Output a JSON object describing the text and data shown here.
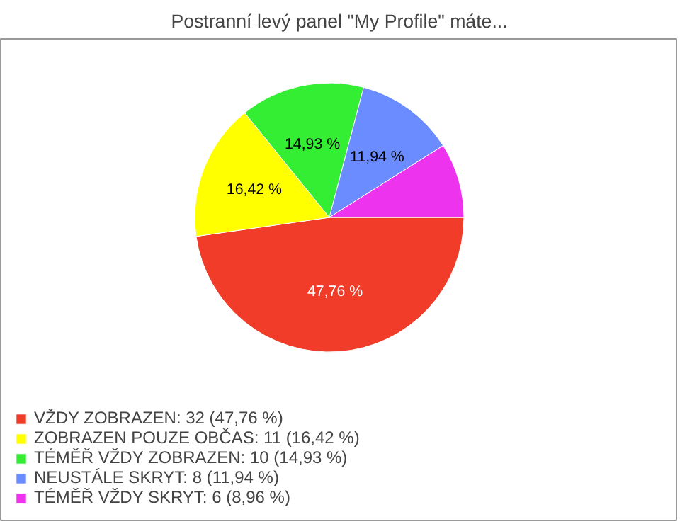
{
  "chart_data": {
    "type": "pie",
    "title": "Postranní levý panel \"My Profile\" máte...",
    "categories": [
      "VŽDY ZOBRAZEN: 32 (47,76 %)",
      "ZOBRAZEN POUZE OBČAS: 11 (16,42 %)",
      "TÉMĚŘ VŽDY ZOBRAZEN: 10 (14,93 %)",
      "NEUSTÁLE SKRYT: 8 (11,94 %)",
      "TÉMĚŘ VŽDY SKRYT: 6 (8,96 %)"
    ],
    "values": [
      47.76,
      16.42,
      14.93,
      11.94,
      8.96
    ],
    "value_labels": [
      "47,76 %",
      "16,42 %",
      "14,93 %",
      "11,94 %",
      null
    ],
    "colors": [
      "#f03c28",
      "#ffff00",
      "#33ee33",
      "#6a8cff",
      "#ee33ee"
    ],
    "legend": "bottom left"
  }
}
